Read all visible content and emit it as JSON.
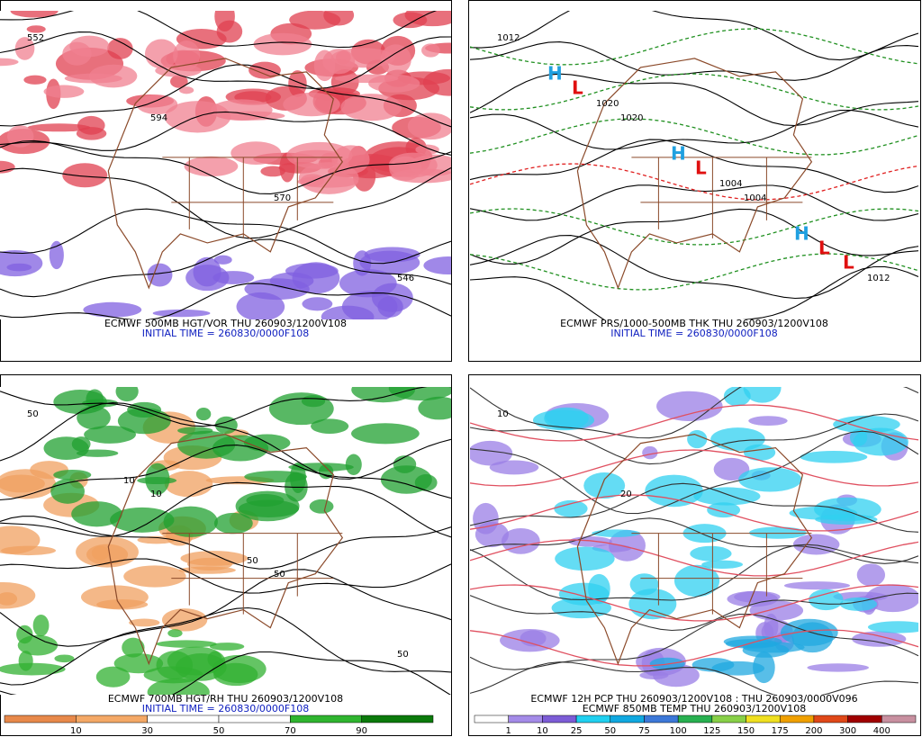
{
  "panels": [
    {
      "caption": "ECMWF 500MB HGT/VOR THU 260903/1200V108",
      "initial_time": "INITIAL TIME = 260830/0000F108",
      "map_labels": [
        "552",
        "594",
        "570",
        "546"
      ]
    },
    {
      "caption": "ECMWF PRS/1000-500MB THK THU 260903/1200V108",
      "initial_time": "INITIAL TIME = 260830/0000F108",
      "map_labels": [
        "1012",
        "1020",
        "1004",
        "1012",
        "1020",
        "1004",
        "L",
        "L",
        "L",
        "L",
        "H",
        "H",
        "H"
      ]
    },
    {
      "caption": "ECMWF 700MB HGT/RH THU 260903/1200V108",
      "initial_time": "INITIAL TIME = 260830/0000F108",
      "map_labels": [
        "50",
        "10",
        "50",
        "50",
        "10",
        "50"
      ]
    },
    {
      "caption": "ECMWF 12H PCP THU 260903/1200V108 : THU 260903/0000V096",
      "initial_time": "ECMWF 850MB TEMP THU 260903/1200V108",
      "map_labels": [
        "10",
        "20"
      ]
    }
  ],
  "colorbars": [
    {
      "colors": [
        "#e8894a",
        "#f4a866",
        "#ffffff",
        "#ffffff",
        "#2fb52f",
        "#0b7a0b"
      ],
      "labels": [
        "10",
        "30",
        "50",
        "70",
        "90"
      ]
    },
    {
      "colors": [
        "#ffffff",
        "#a48be8",
        "#7c5cd6",
        "#20d0f0",
        "#10a8e0",
        "#3c78d8",
        "#28b050",
        "#88d048",
        "#f0e020",
        "#f0a000",
        "#e04818",
        "#a00000",
        "#c890a0"
      ],
      "labels": [
        "1",
        "10",
        "25",
        "50",
        "75",
        "100",
        "125",
        "150",
        "175",
        "200",
        "300",
        "400"
      ]
    }
  ]
}
